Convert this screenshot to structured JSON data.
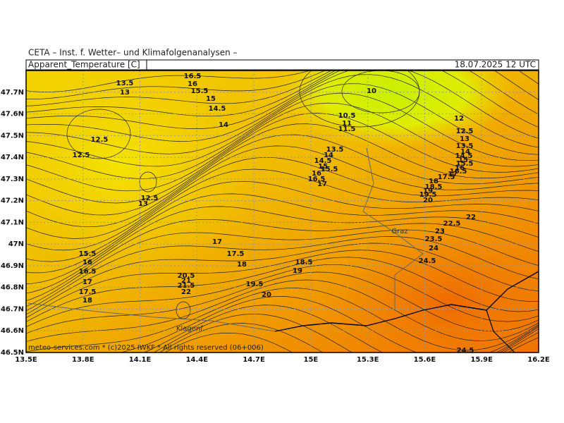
{
  "header": {
    "institute": "CETA – Inst. f. Wetter– und Klimafolgenanalysen –",
    "variable": "Apparent_Temperature [C]",
    "valid": "18.07.2025 12 UTC"
  },
  "map": {
    "xticks": [
      {
        "value": 13.5,
        "label": "13.5E"
      },
      {
        "value": 13.8,
        "label": "13.8E"
      },
      {
        "value": 14.1,
        "label": "14.1E"
      },
      {
        "value": 14.4,
        "label": "14.4E"
      },
      {
        "value": 14.7,
        "label": "14.7E"
      },
      {
        "value": 15,
        "label": "15E"
      },
      {
        "value": 15.3,
        "label": "15.3E"
      },
      {
        "value": 15.6,
        "label": "15.6E"
      },
      {
        "value": 15.9,
        "label": "15.9E"
      },
      {
        "value": 16.2,
        "label": "16.2E"
      }
    ],
    "yticks": [
      {
        "value": 46.5,
        "label": "46.5N"
      },
      {
        "value": 46.6,
        "label": "46.6N"
      },
      {
        "value": 46.7,
        "label": "46.7N"
      },
      {
        "value": 46.8,
        "label": "46.8N"
      },
      {
        "value": 46.9,
        "label": "46.9N"
      },
      {
        "value": 47,
        "label": "47N"
      },
      {
        "value": 47.1,
        "label": "47.1N"
      },
      {
        "value": 47.2,
        "label": "47.2N"
      },
      {
        "value": 47.3,
        "label": "47.3N"
      },
      {
        "value": 47.4,
        "label": "47.4N"
      },
      {
        "value": 47.5,
        "label": "47.5N"
      },
      {
        "value": 47.6,
        "label": "47.6N"
      },
      {
        "value": 47.7,
        "label": "47.7N"
      }
    ],
    "xlim": [
      13.5,
      16.2
    ],
    "ylim": [
      46.5,
      47.8
    ],
    "places": [
      "Graz",
      "Klagenf."
    ],
    "contour_labels": [
      "16.5",
      "16",
      "15.5",
      "15",
      "14.5",
      "14",
      "13.5",
      "13",
      "12.5",
      "12.5",
      "12.5",
      "13",
      "10",
      "10.5",
      "11",
      "11.5",
      "12",
      "12.5",
      "13",
      "13.5",
      "14",
      "14.5",
      "15",
      "15.5",
      "16",
      "16.5",
      "17",
      "13.5",
      "14",
      "14.5",
      "15",
      "15.5",
      "16",
      "16.5",
      "17",
      "17.5",
      "18",
      "18.5",
      "19",
      "19.5",
      "20",
      "22",
      "22.5",
      "23",
      "23.5",
      "24",
      "24.5",
      "17",
      "17.5",
      "18",
      "18.5",
      "19",
      "19.5",
      "20",
      "15.5",
      "16",
      "16.5",
      "17",
      "17.5",
      "18",
      "20.5",
      "21",
      "21.5",
      "22",
      "24.5"
    ],
    "footer": "meteo-services.com * (c)2025 IWKF * All rights reserved (06+006)"
  }
}
